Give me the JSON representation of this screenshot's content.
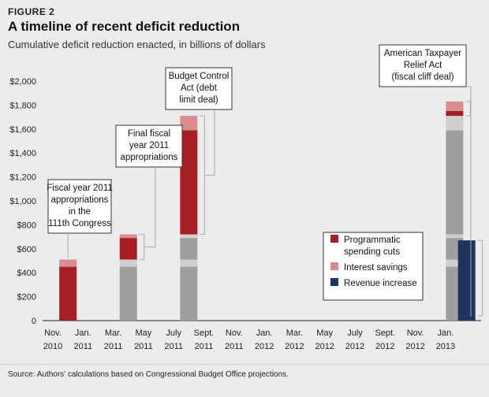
{
  "figure_label": "FIGURE 2",
  "source": "Source: Authors' calculations based on Congressional Budget Office projections.",
  "colors": {
    "programmatic": "#a51f24",
    "interest": "#d98d8d",
    "revenue": "#1b3560",
    "prior_dark": "#9e9e9e",
    "prior_light": "#cfcfcf",
    "background": "#ececec"
  },
  "chart_data": {
    "type": "bar",
    "stacked": true,
    "title": "A timeline of recent deficit reduction",
    "subtitle": "Cumulative deficit reduction enacted, in billions of dollars",
    "xlabel": "",
    "ylabel": "",
    "ylim": [
      0,
      2000
    ],
    "yticks": [
      "$2,000",
      "$1,800",
      "$1,600",
      "$1,400",
      "$1,200",
      "$1,000",
      "$800",
      "$600",
      "$400",
      "$200",
      "0"
    ],
    "categories": [
      "Nov. 2010",
      "Jan. 2011",
      "Mar. 2011",
      "May 2011",
      "July 2011",
      "Sept. 2011",
      "Nov. 2011",
      "Jan. 2012",
      "Mar. 2012",
      "May 2012",
      "July 2012",
      "Sept. 2012",
      "Nov. 2012",
      "Jan. 2013"
    ],
    "category_lines": [
      [
        "Nov.",
        "2010"
      ],
      [
        "Jan.",
        "2011"
      ],
      [
        "Mar.",
        "2011"
      ],
      [
        "May",
        "2011"
      ],
      [
        "July",
        "2011"
      ],
      [
        "Sept.",
        "2011"
      ],
      [
        "Nov.",
        "2011"
      ],
      [
        "Jan.",
        "2012"
      ],
      [
        "Mar.",
        "2012"
      ],
      [
        "May",
        "2012"
      ],
      [
        "July",
        "2012"
      ],
      [
        "Sept.",
        "2012"
      ],
      [
        "Nov.",
        "2012"
      ],
      [
        "Jan.",
        "2013"
      ]
    ],
    "legend": [
      {
        "label": "Programmatic spending cuts",
        "lines": [
          "Programmatic",
          "spending cuts"
        ],
        "color_key": "programmatic"
      },
      {
        "label": "Interest savings",
        "lines": [
          "Interest savings"
        ],
        "color_key": "interest"
      },
      {
        "label": "Revenue increase",
        "lines": [
          "Revenue increase"
        ],
        "color_key": "revenue"
      }
    ],
    "bars": [
      {
        "name": "fy2011-cr",
        "category_index": 0.5,
        "segments": [
          {
            "kind": "programmatic",
            "value": 450
          },
          {
            "kind": "interest",
            "value": 60
          }
        ]
      },
      {
        "name": "final-fy2011",
        "category_index": 2.5,
        "segments": [
          {
            "kind": "prior_dark",
            "value": 450
          },
          {
            "kind": "prior_light",
            "value": 60
          },
          {
            "kind": "programmatic",
            "value": 180
          },
          {
            "kind": "interest",
            "value": 30
          }
        ]
      },
      {
        "name": "bca",
        "category_index": 4.5,
        "segments": [
          {
            "kind": "prior_dark",
            "value": 450
          },
          {
            "kind": "prior_light",
            "value": 60
          },
          {
            "kind": "prior_dark",
            "value": 180
          },
          {
            "kind": "prior_light",
            "value": 30
          },
          {
            "kind": "programmatic",
            "value": 870
          },
          {
            "kind": "interest",
            "value": 120
          }
        ]
      },
      {
        "name": "atra-spending",
        "category_index": 13.3,
        "segments": [
          {
            "kind": "prior_dark",
            "value": 450
          },
          {
            "kind": "prior_light",
            "value": 60
          },
          {
            "kind": "prior_dark",
            "value": 180
          },
          {
            "kind": "prior_light",
            "value": 30
          },
          {
            "kind": "prior_dark",
            "value": 870
          },
          {
            "kind": "prior_light",
            "value": 120
          },
          {
            "kind": "programmatic",
            "value": 40
          },
          {
            "kind": "interest",
            "value": 80
          }
        ]
      },
      {
        "name": "atra-revenue",
        "category_index": 13.7,
        "segments": [
          {
            "kind": "revenue",
            "value": 670
          }
        ]
      }
    ],
    "annotations": [
      {
        "name": "annotation-fy2011-cr",
        "lines": [
          "Fiscal year 2011",
          "appropriations",
          "in the",
          "111th Congress"
        ]
      },
      {
        "name": "annotation-final-fy2011",
        "lines": [
          "Final fiscal",
          "year 2011",
          "appropriations"
        ]
      },
      {
        "name": "annotation-bca",
        "lines": [
          "Budget Control",
          "Act (debt",
          "limit deal)"
        ]
      },
      {
        "name": "annotation-atra",
        "lines": [
          "American Taxpayer",
          "Relief Act",
          "(fiscal cliff deal)"
        ]
      }
    ]
  }
}
